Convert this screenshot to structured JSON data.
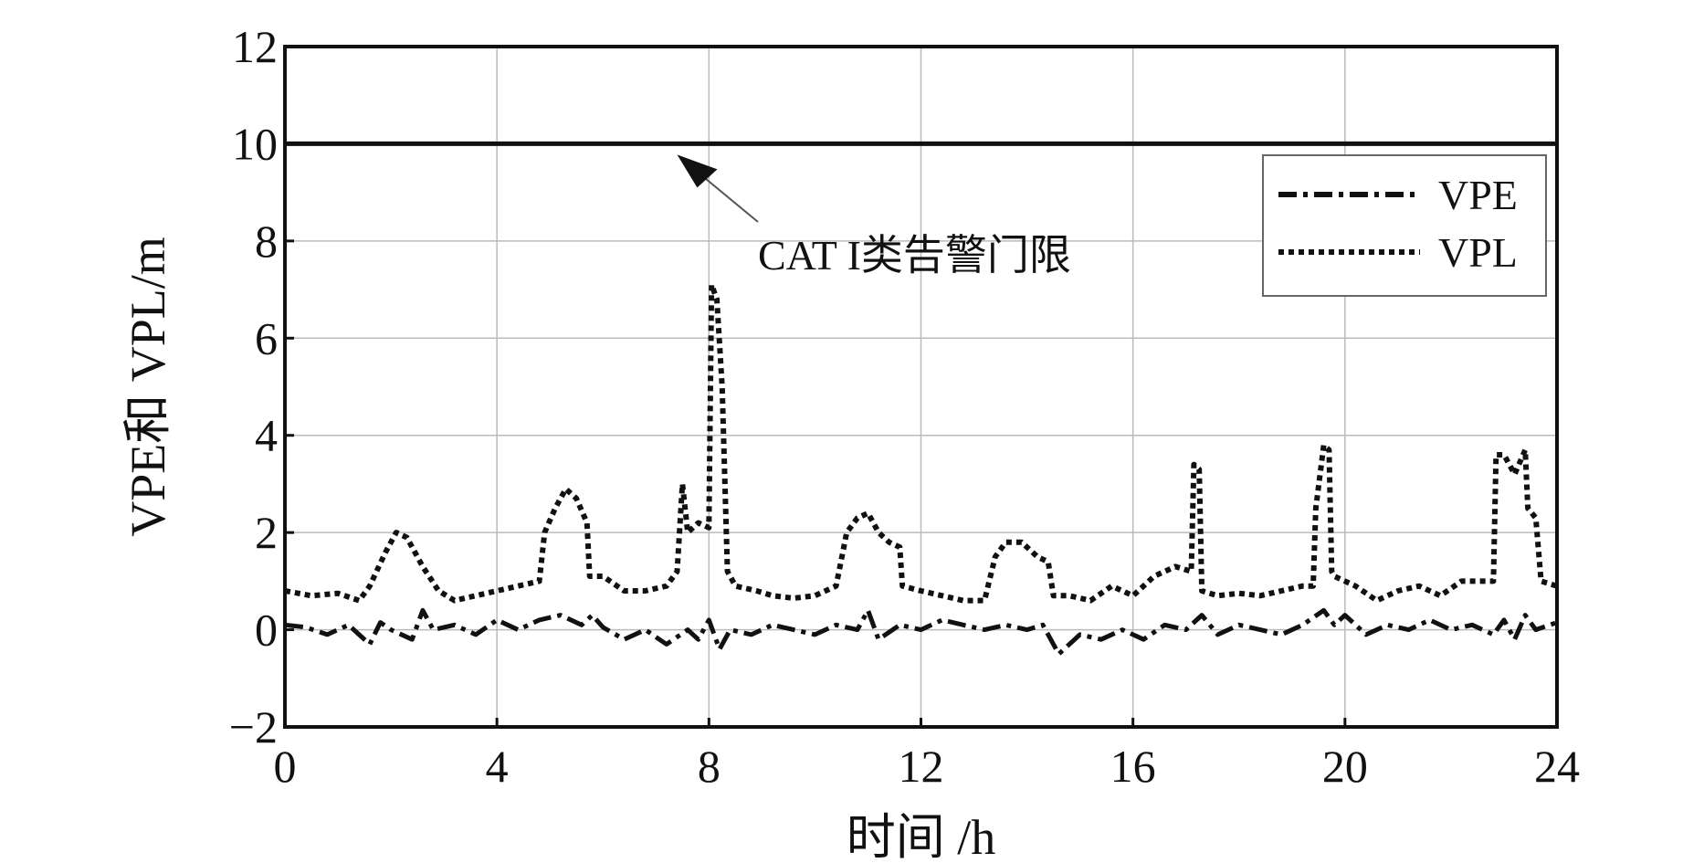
{
  "chart_data": {
    "type": "line",
    "xlabel": "时间 /h",
    "ylabel": "VPE和 VPL/m",
    "xlim": [
      0,
      24
    ],
    "ylim": [
      -2,
      12
    ],
    "xticks": [
      "0",
      "4",
      "8",
      "12",
      "16",
      "20",
      "24"
    ],
    "yticks": [
      "−2",
      "0",
      "2",
      "4",
      "6",
      "8",
      "10",
      "12"
    ],
    "grid": true,
    "legend_position": "top-right",
    "threshold": {
      "y": 10,
      "label": "CAT I类告警门限"
    },
    "annotation": {
      "text": "CAT I类告警门限",
      "arrow_to": [
        7.4,
        10
      ]
    },
    "series": [
      {
        "name": "VPE",
        "style": "dash-dot",
        "color": "#111111",
        "x": [
          0,
          0.4,
          0.8,
          1.2,
          1.6,
          1.8,
          2.0,
          2.4,
          2.6,
          2.8,
          3.2,
          3.6,
          4.0,
          4.4,
          4.8,
          5.2,
          5.6,
          5.8,
          6.0,
          6.4,
          6.8,
          7.2,
          7.6,
          7.8,
          8.0,
          8.2,
          8.4,
          8.8,
          9.2,
          9.6,
          10.0,
          10.4,
          10.8,
          11.0,
          11.2,
          11.6,
          12.0,
          12.4,
          12.8,
          13.2,
          13.6,
          14.0,
          14.3,
          14.6,
          15.0,
          15.4,
          15.8,
          16.2,
          16.6,
          17.0,
          17.3,
          17.6,
          18.0,
          18.4,
          18.8,
          19.2,
          19.6,
          19.8,
          20.0,
          20.4,
          20.8,
          21.2,
          21.6,
          22.0,
          22.4,
          22.8,
          23.0,
          23.2,
          23.4,
          23.6,
          24.0
        ],
        "values": [
          0.1,
          0.05,
          -0.1,
          0.1,
          -0.3,
          0.15,
          0.0,
          -0.2,
          0.4,
          0.0,
          0.1,
          -0.1,
          0.2,
          0.0,
          0.2,
          0.3,
          0.1,
          0.3,
          0.05,
          -0.2,
          0.0,
          -0.3,
          0.0,
          -0.2,
          0.2,
          -0.4,
          0.0,
          -0.1,
          0.1,
          0.0,
          -0.1,
          0.1,
          0.0,
          0.4,
          -0.2,
          0.1,
          0.0,
          0.2,
          0.1,
          0.0,
          0.1,
          0.0,
          0.1,
          -0.5,
          -0.1,
          -0.2,
          0.0,
          -0.2,
          0.1,
          0.0,
          0.3,
          -0.1,
          0.1,
          0.0,
          -0.1,
          0.1,
          0.4,
          0.1,
          0.3,
          -0.1,
          0.1,
          0.0,
          0.2,
          0.0,
          0.1,
          -0.1,
          0.2,
          -0.2,
          0.3,
          0.0,
          0.15
        ]
      },
      {
        "name": "VPL",
        "style": "dotted",
        "color": "#111111",
        "x": [
          0,
          0.5,
          1.0,
          1.4,
          1.6,
          1.9,
          2.1,
          2.3,
          2.6,
          2.9,
          3.2,
          3.6,
          4.0,
          4.4,
          4.8,
          4.9,
          5.1,
          5.3,
          5.5,
          5.7,
          5.75,
          6.0,
          6.4,
          6.8,
          7.2,
          7.4,
          7.5,
          7.6,
          7.8,
          8.0,
          8.05,
          8.15,
          8.25,
          8.35,
          8.5,
          8.9,
          9.2,
          9.6,
          10.0,
          10.4,
          10.6,
          10.8,
          11.0,
          11.2,
          11.4,
          11.6,
          11.65,
          12.0,
          12.4,
          12.8,
          13.2,
          13.4,
          13.6,
          13.9,
          14.2,
          14.4,
          14.5,
          14.8,
          15.2,
          15.6,
          16.0,
          16.4,
          16.8,
          17.1,
          17.15,
          17.25,
          17.3,
          17.6,
          18.0,
          18.4,
          18.8,
          19.2,
          19.4,
          19.45,
          19.6,
          19.7,
          19.75,
          19.8,
          20.2,
          20.6,
          21.0,
          21.4,
          21.8,
          22.2,
          22.4,
          22.8,
          22.85,
          23.0,
          23.2,
          23.4,
          23.45,
          23.6,
          23.7,
          24.0
        ],
        "values": [
          0.8,
          0.7,
          0.75,
          0.6,
          0.9,
          1.6,
          2.0,
          1.9,
          1.3,
          0.8,
          0.6,
          0.7,
          0.8,
          0.9,
          1.0,
          2.0,
          2.5,
          2.9,
          2.7,
          2.2,
          1.1,
          1.1,
          0.8,
          0.8,
          0.9,
          1.2,
          3.0,
          2.0,
          2.2,
          2.1,
          7.1,
          6.8,
          5.0,
          1.2,
          0.9,
          0.8,
          0.7,
          0.65,
          0.7,
          0.9,
          2.0,
          2.3,
          2.4,
          2.0,
          1.8,
          1.7,
          0.9,
          0.8,
          0.7,
          0.6,
          0.6,
          1.5,
          1.8,
          1.8,
          1.5,
          1.4,
          0.7,
          0.7,
          0.6,
          0.9,
          0.7,
          1.1,
          1.3,
          1.2,
          3.4,
          3.3,
          0.8,
          0.7,
          0.75,
          0.7,
          0.8,
          0.9,
          0.9,
          2.5,
          3.8,
          3.7,
          1.2,
          1.1,
          0.9,
          0.6,
          0.8,
          0.9,
          0.7,
          1.0,
          1.0,
          1.0,
          3.6,
          3.6,
          3.2,
          3.7,
          2.5,
          2.3,
          1.0,
          0.9
        ]
      }
    ]
  }
}
